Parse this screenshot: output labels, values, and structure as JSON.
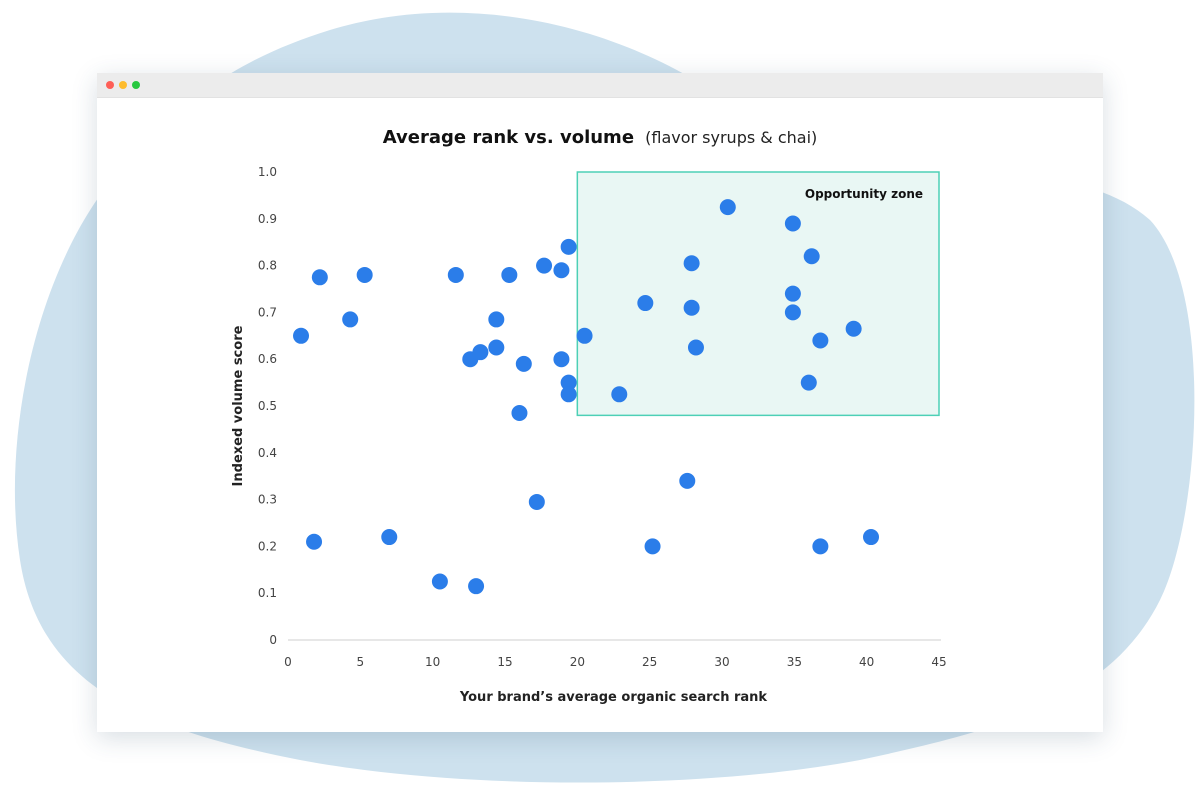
{
  "chart_data": {
    "type": "scatter",
    "title": "Average rank vs. volume",
    "subtitle": "(flavor syrups & chai)",
    "xlabel": "Your brand’s average organic search rank",
    "ylabel": "Indexed volume score",
    "xlim": [
      0,
      45
    ],
    "ylim": [
      0,
      1.0
    ],
    "x_ticks": [
      "0",
      "5",
      "10",
      "15",
      "20",
      "25",
      "30",
      "35",
      "40",
      "45"
    ],
    "y_ticks": [
      "0",
      "0.1",
      "0.2",
      "0.3",
      "0.4",
      "0.5",
      "0.6",
      "0.7",
      "0.8",
      "0.9",
      "1.0"
    ],
    "grid": false,
    "annotations": [
      {
        "label": "Opportunity zone",
        "x_range": [
          20,
          45
        ],
        "y_range": [
          0.48,
          1.0
        ]
      }
    ],
    "series": [
      {
        "points": [
          [
            0.9,
            0.65
          ],
          [
            1.8,
            0.21
          ],
          [
            2.2,
            0.775
          ],
          [
            4.3,
            0.685
          ],
          [
            5.3,
            0.78
          ],
          [
            7.0,
            0.22
          ],
          [
            10.5,
            0.125
          ],
          [
            11.6,
            0.78
          ],
          [
            12.6,
            0.6
          ],
          [
            13.0,
            0.115
          ],
          [
            13.3,
            0.615
          ],
          [
            14.4,
            0.685
          ],
          [
            14.4,
            0.625
          ],
          [
            15.3,
            0.78
          ],
          [
            16.0,
            0.485
          ],
          [
            16.3,
            0.59
          ],
          [
            17.2,
            0.295
          ],
          [
            17.7,
            0.8
          ],
          [
            18.9,
            0.79
          ],
          [
            18.9,
            0.6
          ],
          [
            19.4,
            0.84
          ],
          [
            19.4,
            0.55
          ],
          [
            19.4,
            0.525
          ],
          [
            20.5,
            0.65
          ],
          [
            22.9,
            0.525
          ],
          [
            24.7,
            0.72
          ],
          [
            25.2,
            0.2
          ],
          [
            27.6,
            0.34
          ],
          [
            27.9,
            0.805
          ],
          [
            27.9,
            0.71
          ],
          [
            28.2,
            0.625
          ],
          [
            30.4,
            0.925
          ],
          [
            34.9,
            0.89
          ],
          [
            34.9,
            0.74
          ],
          [
            34.9,
            0.7
          ],
          [
            36.0,
            0.55
          ],
          [
            36.2,
            0.82
          ],
          [
            36.8,
            0.64
          ],
          [
            36.8,
            0.2
          ],
          [
            39.1,
            0.665
          ],
          [
            40.3,
            0.22
          ]
        ]
      }
    ]
  },
  "colors": {
    "point": "#2b7de9",
    "zone_fill": "#e9f7f4",
    "zone_stroke": "#4dd0b6",
    "blob": "#cde1ee",
    "axis": "#cfcfcf"
  }
}
